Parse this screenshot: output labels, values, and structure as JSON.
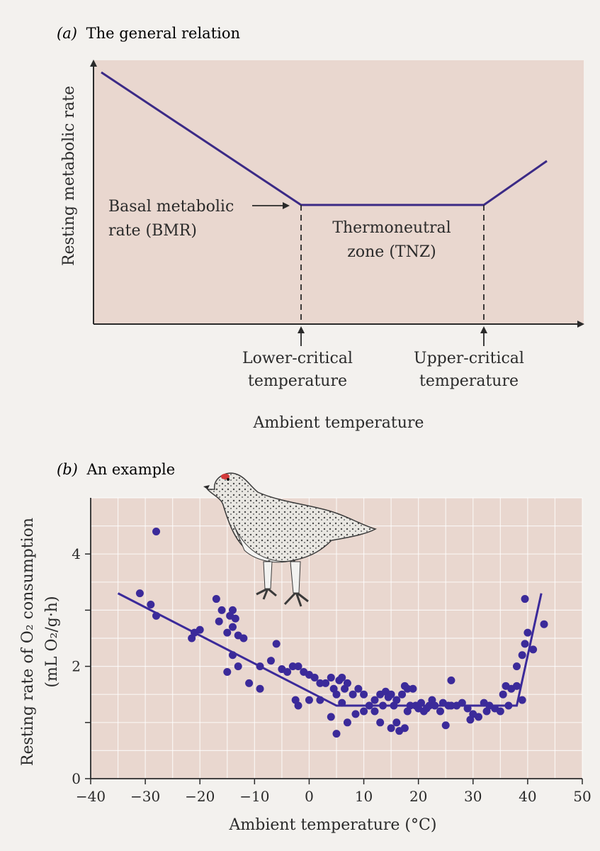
{
  "chart_data": [
    {
      "type": "line",
      "panel_letter": "(a)",
      "title": "The general relation",
      "ylabel": "Resting metabolic rate",
      "xlabel": "Ambient temperature",
      "x": [
        "low",
        "lower-critical",
        "upper-critical",
        "high"
      ],
      "series": [
        {
          "values": [
            "high",
            "BMR",
            "BMR",
            "rising"
          ]
        }
      ],
      "annotations": {
        "bmr": [
          "Basal metabolic",
          "rate (BMR)"
        ],
        "tnz": [
          "Thermoneutral",
          "zone (TNZ)"
        ],
        "lower_critical": [
          "Lower-critical",
          "temperature"
        ],
        "upper_critical": [
          "Upper-critical",
          "temperature"
        ]
      },
      "grid": false,
      "background_color": "#e9d7cf",
      "line_color": "#3b2a86"
    },
    {
      "type": "scatter",
      "panel_letter": "(b)",
      "title": "An example",
      "ylabel_line1": "Resting rate of O₂ consumption",
      "ylabel_line2": "(mL O₂/g·h)",
      "xlabel": "Ambient temperature (°C)",
      "xlim": [
        -40,
        50
      ],
      "ylim": [
        0,
        5
      ],
      "xticks": [
        -40,
        -30,
        -20,
        -10,
        0,
        10,
        20,
        30,
        40,
        50
      ],
      "yticks": [
        0,
        2,
        4
      ],
      "ytick_marks": [
        0,
        1,
        2,
        3,
        4
      ],
      "grid": true,
      "background_color": "#e9d7cf",
      "point_color": "#3b2a9a",
      "fit_line": {
        "x": [
          -35,
          5,
          38,
          42.5
        ],
        "y": [
          3.3,
          1.3,
          1.3,
          3.3
        ]
      },
      "points": [
        [
          -28,
          4.4
        ],
        [
          -31,
          3.3
        ],
        [
          -29,
          3.1
        ],
        [
          -28,
          2.9
        ],
        [
          -21.5,
          2.5
        ],
        [
          -21,
          2.6
        ],
        [
          -20,
          2.65
        ],
        [
          -17,
          3.2
        ],
        [
          -16.5,
          2.8
        ],
        [
          -16,
          3.0
        ],
        [
          -15,
          2.6
        ],
        [
          -14.5,
          2.9
        ],
        [
          -14,
          3.0
        ],
        [
          -14,
          2.7
        ],
        [
          -13.5,
          2.85
        ],
        [
          -13,
          2.55
        ],
        [
          -12,
          2.5
        ],
        [
          -15,
          1.9
        ],
        [
          -14,
          2.2
        ],
        [
          -13,
          2.0
        ],
        [
          -11,
          1.7
        ],
        [
          -9,
          2.0
        ],
        [
          -9,
          1.6
        ],
        [
          -7,
          2.1
        ],
        [
          -6,
          2.4
        ],
        [
          -5,
          1.95
        ],
        [
          -4,
          1.9
        ],
        [
          -3,
          2.0
        ],
        [
          -2,
          2.0
        ],
        [
          -1,
          1.9
        ],
        [
          -2,
          1.3
        ],
        [
          -2.5,
          1.4
        ],
        [
          0,
          1.85
        ],
        [
          1,
          1.8
        ],
        [
          2,
          1.7
        ],
        [
          0,
          1.4
        ],
        [
          2,
          1.4
        ],
        [
          3,
          1.7
        ],
        [
          4,
          1.8
        ],
        [
          4.5,
          1.6
        ],
        [
          5,
          1.5
        ],
        [
          5.5,
          1.75
        ],
        [
          6,
          1.8
        ],
        [
          6.5,
          1.6
        ],
        [
          7,
          1.7
        ],
        [
          4,
          1.1
        ],
        [
          5,
          0.8
        ],
        [
          6,
          1.35
        ],
        [
          8,
          1.5
        ],
        [
          9,
          1.6
        ],
        [
          10,
          1.5
        ],
        [
          11,
          1.3
        ],
        [
          12,
          1.4
        ],
        [
          13,
          1.5
        ],
        [
          13.5,
          1.3
        ],
        [
          7,
          1.0
        ],
        [
          8.5,
          1.15
        ],
        [
          10,
          1.2
        ],
        [
          12,
          1.2
        ],
        [
          13,
          1.0
        ],
        [
          14,
          1.55
        ],
        [
          14.5,
          1.45
        ],
        [
          15,
          1.5
        ],
        [
          15.5,
          1.3
        ],
        [
          16,
          1.4
        ],
        [
          17,
          1.5
        ],
        [
          15,
          0.9
        ],
        [
          16,
          1.0
        ],
        [
          16.5,
          0.85
        ],
        [
          17.5,
          0.9
        ],
        [
          18,
          1.2
        ],
        [
          17.5,
          1.65
        ],
        [
          18,
          1.6
        ],
        [
          19,
          1.6
        ],
        [
          18.5,
          1.3
        ],
        [
          19.5,
          1.3
        ],
        [
          20,
          1.25
        ],
        [
          20.5,
          1.35
        ],
        [
          21,
          1.2
        ],
        [
          21.5,
          1.25
        ],
        [
          22,
          1.3
        ],
        [
          22.5,
          1.4
        ],
        [
          23,
          1.3
        ],
        [
          24,
          1.2
        ],
        [
          24.5,
          1.35
        ],
        [
          25,
          0.95
        ],
        [
          25.5,
          1.3
        ],
        [
          26,
          1.3
        ],
        [
          26,
          1.75
        ],
        [
          27,
          1.3
        ],
        [
          28,
          1.35
        ],
        [
          29,
          1.25
        ],
        [
          29.5,
          1.05
        ],
        [
          30,
          1.15
        ],
        [
          31,
          1.1
        ],
        [
          32,
          1.35
        ],
        [
          32.5,
          1.2
        ],
        [
          33,
          1.3
        ],
        [
          34,
          1.25
        ],
        [
          35,
          1.2
        ],
        [
          35.5,
          1.5
        ],
        [
          36,
          1.65
        ],
        [
          36.5,
          1.3
        ],
        [
          37,
          1.6
        ],
        [
          38,
          1.65
        ],
        [
          38,
          2.0
        ],
        [
          39,
          2.2
        ],
        [
          39,
          1.4
        ],
        [
          39.5,
          2.4
        ],
        [
          40,
          2.6
        ],
        [
          41,
          2.3
        ],
        [
          43,
          2.75
        ],
        [
          39.5,
          3.2
        ]
      ]
    }
  ],
  "illustration": {
    "icon": "ptarmigan-bird-icon"
  }
}
